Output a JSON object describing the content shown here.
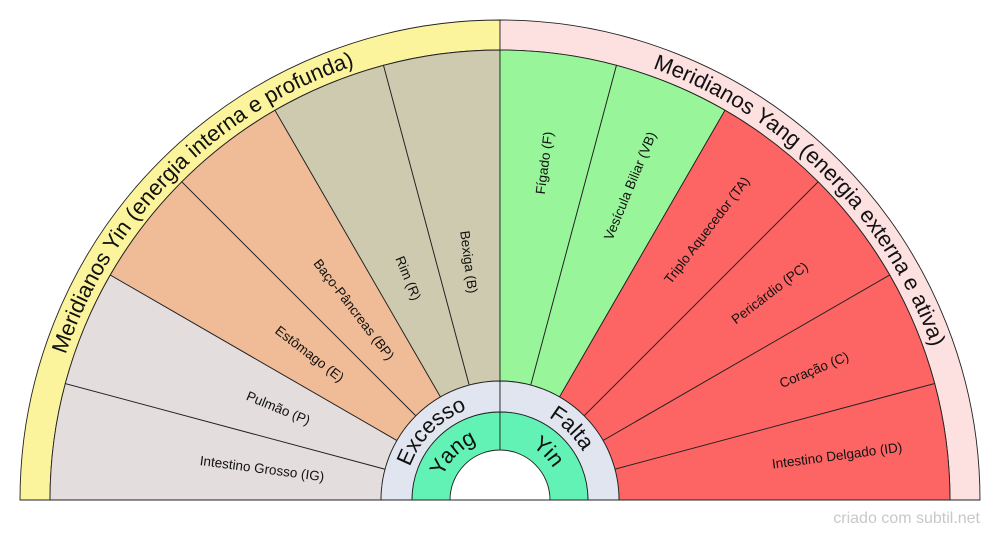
{
  "outer_labels": {
    "yin": "Meridianos Yin (energia interna e profunda)",
    "yang": "Meridianos Yang (energia externa e ativa)"
  },
  "center": {
    "left_outer": "Excesso",
    "left_inner": "Yang",
    "right_outer": "Falta",
    "right_inner": "Yin"
  },
  "segments": [
    {
      "label": "Intestino Grosso (IG)",
      "color": "#e3dedd"
    },
    {
      "label": "Pulmão (P)",
      "color": "#e3dedd"
    },
    {
      "label": "Estômago (E)",
      "color": "#f0bc97"
    },
    {
      "label": "Baço-Pâncreas (BP)",
      "color": "#f0bc97"
    },
    {
      "label": "Rim (R)",
      "color": "#cdcab0"
    },
    {
      "label": "Bexiga (B)",
      "color": "#cdcab0"
    },
    {
      "label": "Fígado (F)",
      "color": "#98f59a"
    },
    {
      "label": "Vesícula Biliar (VB)",
      "color": "#98f59a"
    },
    {
      "label": "Triplo Aquecedor (TA)",
      "color": "#fd6464"
    },
    {
      "label": "Pericárdio (PC)",
      "color": "#fd6464"
    },
    {
      "label": "Coração (C)",
      "color": "#fd6464"
    },
    {
      "label": "Intestino Delgado (ID)",
      "color": "#fd6464"
    }
  ],
  "colors": {
    "yin_band": "#fbf49c",
    "yang_band": "#fde0e0",
    "center_band": "#e1e5ef",
    "inner_band": "#63f2b5"
  },
  "credit": "criado com subtil.net"
}
